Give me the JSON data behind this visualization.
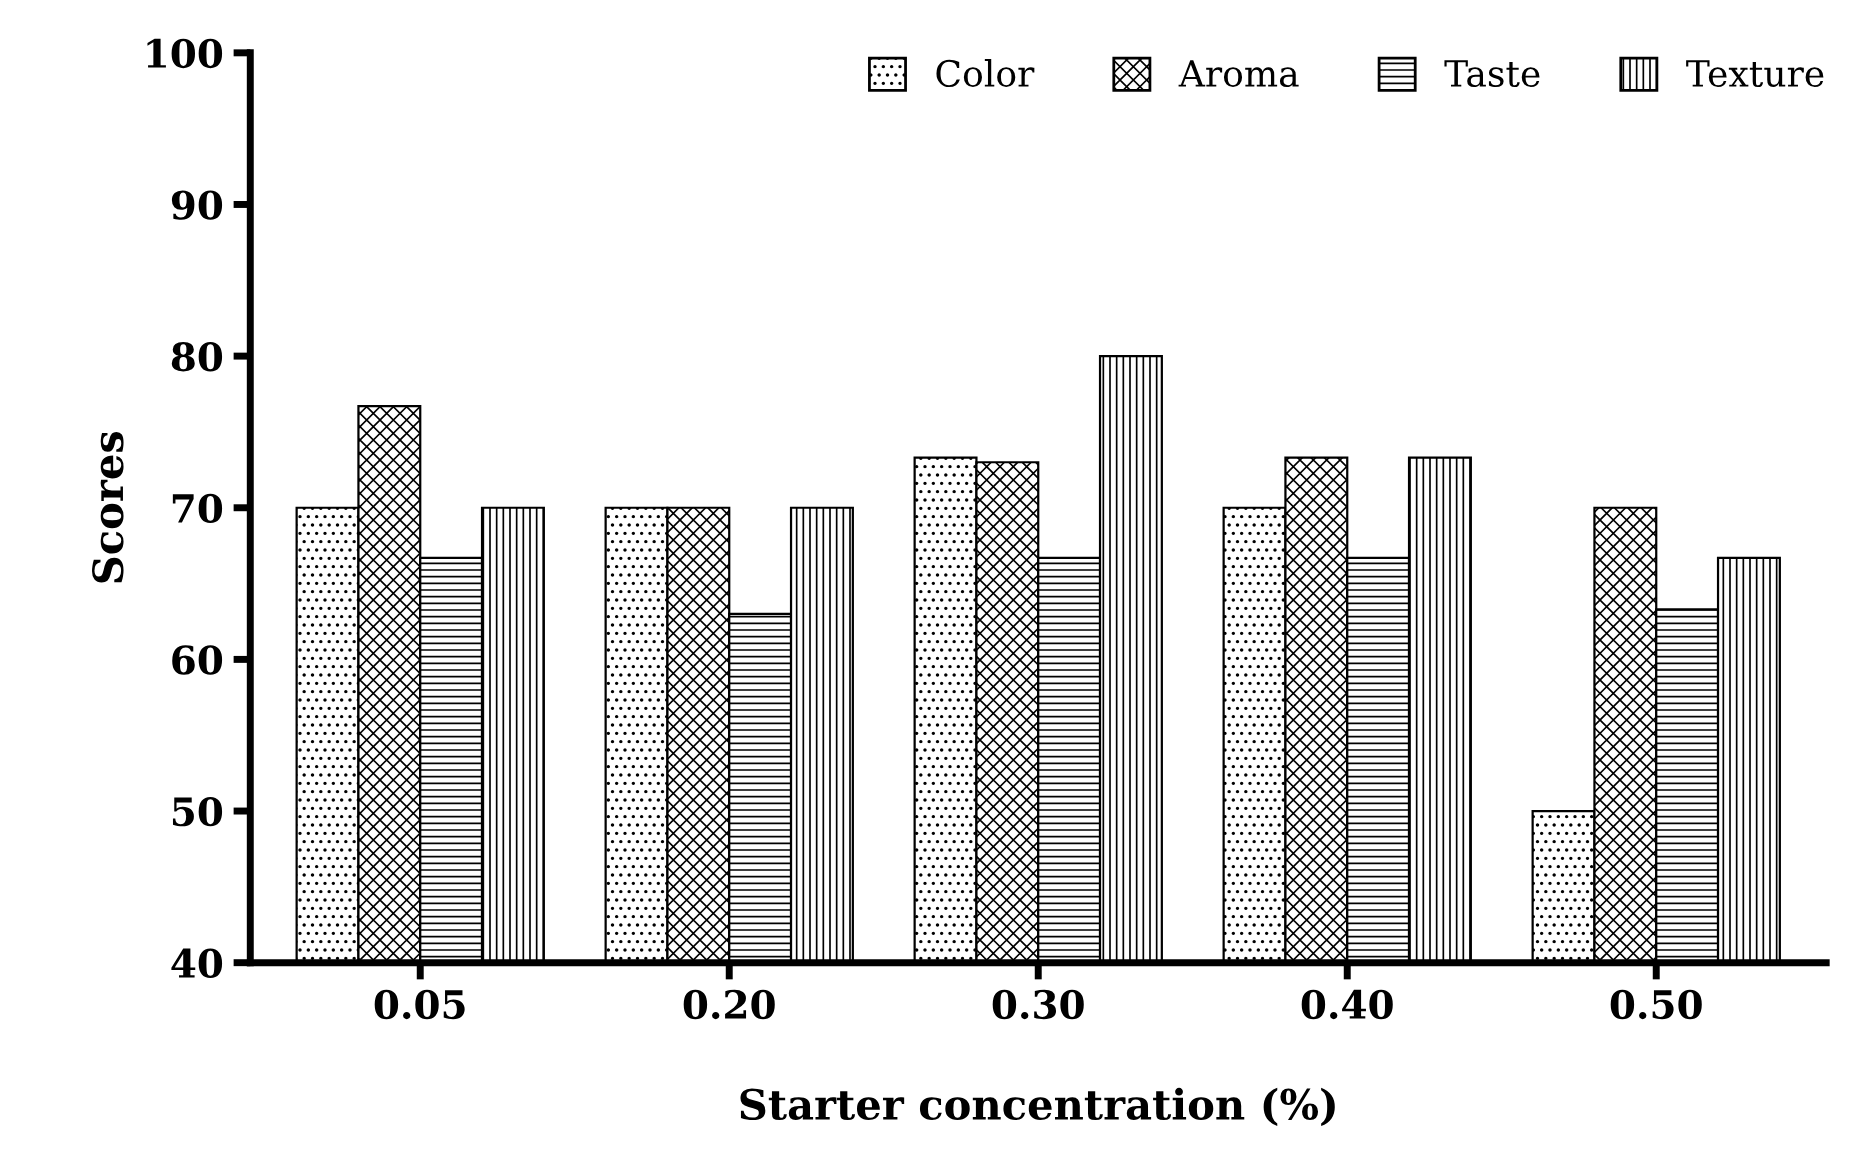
{
  "chart_data": {
    "type": "bar",
    "xlabel": "Starter concentration (%)",
    "ylabel": "Scores",
    "categories": [
      "0.05",
      "0.20",
      "0.30",
      "0.40",
      "0.50"
    ],
    "series": [
      {
        "name": "Color",
        "color": "#000000",
        "values": [
          70,
          70,
          73.3,
          70,
          50
        ]
      },
      {
        "name": "Aroma",
        "color": "#000000",
        "values": [
          76.7,
          70,
          73,
          73.3,
          70
        ]
      },
      {
        "name": "Taste",
        "color": "#000000",
        "values": [
          66.7,
          63,
          66.7,
          66.7,
          63.3
        ]
      },
      {
        "name": "Texture",
        "color": "#000000",
        "values": [
          70,
          70,
          80,
          73.3,
          66.7
        ]
      }
    ],
    "ylim": [
      40,
      100
    ],
    "yticks": [
      40,
      50,
      60,
      70,
      80,
      90,
      100
    ],
    "grid": false,
    "legend": "top right"
  }
}
